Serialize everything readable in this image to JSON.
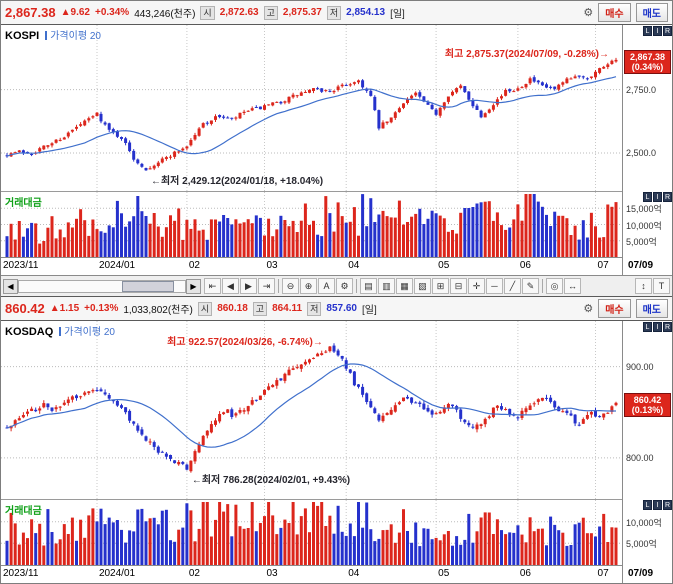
{
  "colors": {
    "up": "#dc261c",
    "down": "#2531cc",
    "ma": "#4070cc",
    "volume_label": "#0fa018",
    "grid": "#bbbbbb"
  },
  "x_axis": {
    "total_days": 150,
    "end_label": "07/09",
    "labels": [
      {
        "text": "2023/11",
        "day": 0
      },
      {
        "text": "2024/01",
        "day": 22
      },
      {
        "text": "02",
        "day": 44
      },
      {
        "text": "03",
        "day": 63
      },
      {
        "text": "04",
        "day": 83
      },
      {
        "text": "05",
        "day": 105
      },
      {
        "text": "06",
        "day": 125
      },
      {
        "text": "07",
        "day": 144
      }
    ]
  },
  "toolbar": {
    "icons": [
      {
        "name": "go-first-icon",
        "glyph": "⇤"
      },
      {
        "name": "step-back-icon",
        "glyph": "◀"
      },
      {
        "name": "step-forward-icon",
        "glyph": "▶"
      },
      {
        "name": "go-last-icon",
        "glyph": "⇥"
      },
      {
        "sep": true
      },
      {
        "name": "zoom-out-icon",
        "glyph": "⊖"
      },
      {
        "name": "zoom-in-icon",
        "glyph": "⊕"
      },
      {
        "name": "auto-scale-icon",
        "glyph": "A"
      },
      {
        "name": "chart-settings-icon",
        "glyph": "⚙"
      },
      {
        "sep": true
      },
      {
        "name": "indicator-window-icon",
        "glyph": "▤"
      },
      {
        "name": "pane-layout-icon",
        "glyph": "▥"
      },
      {
        "name": "grid-icon",
        "glyph": "▦"
      },
      {
        "name": "overlay-chart-icon",
        "glyph": "▧"
      },
      {
        "name": "add-pane-icon",
        "glyph": "⊞"
      },
      {
        "name": "remove-pane-icon",
        "glyph": "⊟"
      },
      {
        "name": "crosshair-icon",
        "glyph": "✛"
      },
      {
        "name": "horizontal-line-icon",
        "glyph": "─"
      },
      {
        "name": "trend-line-icon",
        "glyph": "╱"
      },
      {
        "name": "draw-pencil-icon",
        "glyph": "✎"
      },
      {
        "sep": true
      },
      {
        "name": "magnifier-icon",
        "glyph": "◎"
      },
      {
        "name": "pan-hand-icon",
        "glyph": "↔"
      },
      {
        "spacer": true
      },
      {
        "name": "fit-height-icon",
        "glyph": "↕"
      },
      {
        "name": "text-tool-icon",
        "glyph": "T"
      }
    ]
  },
  "charts": [
    {
      "panel_id": "panel-kospi",
      "header": {
        "price": "2,867.38",
        "change_icon": "▲",
        "change": "9.62",
        "change_pct": "+0.34%",
        "volume": "443,246(천주)",
        "open_label": "시",
        "open": "2,872.63",
        "high_label": "고",
        "high": "2,875.37",
        "low_label": "저",
        "low": "2,854.13",
        "period": "[일]",
        "gear_icon": "⚙",
        "buy_label": "매수",
        "sell_label": "매도"
      },
      "legend": {
        "name": "KOSPI",
        "ma_label": "가격이평",
        "ma_period": "20"
      },
      "volume_label": "거래대금",
      "annotations": {
        "high": "최고 2,875.37(2024/07/09, -0.28%)→",
        "low": "←최저 2,429.12(2024/01/18, +18.04%)"
      },
      "price_tag": {
        "price": "2,867.38",
        "pct": "(0.34%)"
      },
      "right_buttons": [
        "L",
        "I",
        "R"
      ],
      "y_axis": {
        "min": 2350,
        "max": 3005,
        "gridlines": [
          {
            "value": 2750,
            "label": "2,750.0"
          },
          {
            "value": 2500,
            "label": "2,500.0"
          }
        ]
      },
      "volume_axis": {
        "max": 20000,
        "gridlines": [
          {
            "value": 15000,
            "label": "15,000억"
          },
          {
            "value": 10000,
            "label": "10,000억"
          },
          {
            "value": 5000,
            "label": "5,000억"
          }
        ]
      },
      "chart_data": {
        "type": "candlestick",
        "ma_period": 20,
        "seed": 7,
        "volatility": 16,
        "last_close": 2867.38,
        "high_day": 149,
        "high_value": 2875.37,
        "low_day": 34,
        "low_value": 2429.12,
        "close_keyframes": [
          [
            0,
            2495
          ],
          [
            3,
            2506
          ],
          [
            6,
            2500
          ],
          [
            10,
            2532
          ],
          [
            14,
            2566
          ],
          [
            18,
            2612
          ],
          [
            22,
            2655
          ],
          [
            25,
            2588
          ],
          [
            28,
            2561
          ],
          [
            31,
            2478
          ],
          [
            34,
            2437
          ],
          [
            37,
            2464
          ],
          [
            40,
            2492
          ],
          [
            44,
            2528
          ],
          [
            48,
            2616
          ],
          [
            52,
            2646
          ],
          [
            55,
            2630
          ],
          [
            58,
            2662
          ],
          [
            63,
            2682
          ],
          [
            67,
            2702
          ],
          [
            71,
            2731
          ],
          [
            75,
            2750
          ],
          [
            79,
            2744
          ],
          [
            83,
            2770
          ],
          [
            86,
            2786
          ],
          [
            89,
            2722
          ],
          [
            91,
            2601
          ],
          [
            94,
            2636
          ],
          [
            97,
            2702
          ],
          [
            100,
            2736
          ],
          [
            103,
            2682
          ],
          [
            105,
            2656
          ],
          [
            108,
            2731
          ],
          [
            111,
            2762
          ],
          [
            114,
            2691
          ],
          [
            116,
            2646
          ],
          [
            119,
            2696
          ],
          [
            122,
            2742
          ],
          [
            125,
            2756
          ],
          [
            128,
            2791
          ],
          [
            131,
            2762
          ],
          [
            134,
            2751
          ],
          [
            137,
            2786
          ],
          [
            140,
            2806
          ],
          [
            142,
            2796
          ],
          [
            145,
            2832
          ],
          [
            147,
            2856
          ],
          [
            149,
            2867.38
          ]
        ],
        "volume_keyframes": [
          [
            0,
            9000
          ],
          [
            8,
            7800
          ],
          [
            16,
            9500
          ],
          [
            24,
            11500
          ],
          [
            34,
            14000
          ],
          [
            44,
            9200
          ],
          [
            55,
            11000
          ],
          [
            65,
            12500
          ],
          [
            75,
            13000
          ],
          [
            85,
            12000
          ],
          [
            91,
            16000
          ],
          [
            100,
            11000
          ],
          [
            110,
            10500
          ],
          [
            120,
            12500
          ],
          [
            128,
            17500
          ],
          [
            135,
            11000
          ],
          [
            140,
            9500
          ],
          [
            149,
            11500
          ]
        ]
      }
    },
    {
      "panel_id": "panel-kosdaq",
      "header": {
        "price": "860.42",
        "change_icon": "▲",
        "change": "1.15",
        "change_pct": "+0.13%",
        "volume": "1,033,802(천주)",
        "open_label": "시",
        "open": "860.18",
        "high_label": "고",
        "high": "864.11",
        "low_label": "저",
        "low": "857.60",
        "period": "[일]",
        "gear_icon": "⚙",
        "buy_label": "매수",
        "sell_label": "매도"
      },
      "legend": {
        "name": "KOSDAQ",
        "ma_label": "가격이평",
        "ma_period": "20"
      },
      "volume_label": "거래대금",
      "annotations": {
        "high": "최고 922.57(2024/03/26, -6.74%)→",
        "low": "←최저 786.28(2024/02/01, +9.43%)"
      },
      "price_tag": {
        "price": "860.42",
        "pct": "(0.13%)"
      },
      "right_buttons": [
        "L",
        "I",
        "R"
      ],
      "y_axis": {
        "min": 755,
        "max": 950,
        "gridlines": [
          {
            "value": 900,
            "label": "900.00"
          },
          {
            "value": 800,
            "label": "800.00"
          }
        ]
      },
      "volume_axis": {
        "max": 15000,
        "gridlines": [
          {
            "value": 10000,
            "label": "10,000억"
          },
          {
            "value": 5000,
            "label": "5,000억"
          }
        ]
      },
      "chart_data": {
        "type": "candlestick",
        "ma_period": 20,
        "seed": 31,
        "volatility": 6.5,
        "last_close": 860.42,
        "high_day": 79,
        "high_value": 922.57,
        "low_day": 44,
        "low_value": 786.28,
        "close_keyframes": [
          [
            0,
            832
          ],
          [
            3,
            843
          ],
          [
            6,
            851
          ],
          [
            9,
            858
          ],
          [
            12,
            853
          ],
          [
            15,
            862
          ],
          [
            18,
            870
          ],
          [
            22,
            876
          ],
          [
            25,
            868
          ],
          [
            28,
            852
          ],
          [
            31,
            838
          ],
          [
            34,
            822
          ],
          [
            37,
            808
          ],
          [
            40,
            798
          ],
          [
            44,
            789
          ],
          [
            47,
            815
          ],
          [
            50,
            838
          ],
          [
            53,
            852
          ],
          [
            56,
            846
          ],
          [
            59,
            860
          ],
          [
            63,
            872
          ],
          [
            67,
            888
          ],
          [
            71,
            900
          ],
          [
            75,
            912
          ],
          [
            79,
            921
          ],
          [
            82,
            908
          ],
          [
            85,
            882
          ],
          [
            88,
            862
          ],
          [
            91,
            840
          ],
          [
            94,
            855
          ],
          [
            97,
            866
          ],
          [
            100,
            858
          ],
          [
            105,
            848
          ],
          [
            108,
            862
          ],
          [
            111,
            846
          ],
          [
            114,
            830
          ],
          [
            117,
            843
          ],
          [
            120,
            857
          ],
          [
            123,
            850
          ],
          [
            125,
            845
          ],
          [
            128,
            856
          ],
          [
            131,
            866
          ],
          [
            134,
            857
          ],
          [
            137,
            847
          ],
          [
            140,
            838
          ],
          [
            143,
            850
          ],
          [
            145,
            842
          ],
          [
            147,
            850
          ],
          [
            149,
            860.42
          ]
        ],
        "volume_keyframes": [
          [
            0,
            8000
          ],
          [
            15,
            9000
          ],
          [
            30,
            9500
          ],
          [
            44,
            10500
          ],
          [
            60,
            11000
          ],
          [
            79,
            11500
          ],
          [
            90,
            9500
          ],
          [
            105,
            8200
          ],
          [
            120,
            8800
          ],
          [
            135,
            7600
          ],
          [
            149,
            9200
          ]
        ]
      }
    }
  ]
}
